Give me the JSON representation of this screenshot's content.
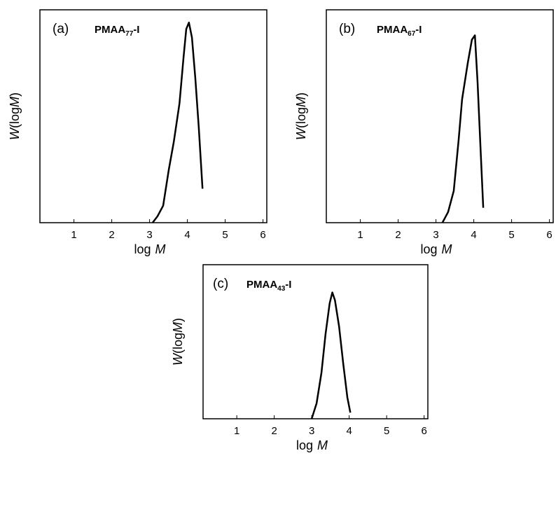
{
  "chart_data": [
    {
      "type": "line",
      "label": "(a)",
      "title": [
        "PMAA",
        "77",
        "-I"
      ],
      "y_label": [
        "W",
        "(log",
        "M",
        ")"
      ],
      "x_label": [
        "log",
        "M"
      ],
      "xlim": [
        0.1,
        6.1
      ],
      "xticks": [
        1,
        2,
        3,
        4,
        5,
        6
      ],
      "ylim": [
        0,
        1
      ],
      "color": "#000000",
      "x": [
        3.08,
        3.21,
        3.36,
        3.51,
        3.64,
        3.79,
        3.9,
        3.97,
        4.04,
        4.12,
        4.21,
        4.3,
        4.4
      ],
      "values": [
        0,
        0.03,
        0.08,
        0.25,
        0.38,
        0.56,
        0.78,
        0.91,
        0.94,
        0.87,
        0.68,
        0.45,
        0.16
      ]
    },
    {
      "type": "line",
      "label": "(b)",
      "title": [
        "PMAA",
        "67",
        "-I"
      ],
      "y_label": [
        "W",
        "(log",
        "M",
        ")"
      ],
      "x_label": [
        "log",
        "M"
      ],
      "xlim": [
        0.1,
        6.1
      ],
      "xticks": [
        1,
        2,
        3,
        4,
        5,
        6
      ],
      "ylim": [
        0,
        1
      ],
      "color": "#000000",
      "x": [
        3.17,
        3.32,
        3.47,
        3.6,
        3.69,
        3.84,
        3.95,
        4.03,
        4.1,
        4.17,
        4.25
      ],
      "values": [
        0,
        0.05,
        0.15,
        0.39,
        0.58,
        0.75,
        0.86,
        0.88,
        0.66,
        0.38,
        0.07
      ]
    },
    {
      "type": "line",
      "label": "(c)",
      "title": [
        "PMAA",
        "43",
        "-I"
      ],
      "y_label": [
        "W",
        "(log",
        "M",
        ")"
      ],
      "x_label": [
        "log",
        "M"
      ],
      "xlim": [
        0.1,
        6.1
      ],
      "xticks": [
        1,
        2,
        3,
        4,
        5,
        6
      ],
      "ylim": [
        0,
        1
      ],
      "color": "#000000",
      "x": [
        3.0,
        3.13,
        3.26,
        3.37,
        3.48,
        3.55,
        3.62,
        3.73,
        3.84,
        3.95,
        4.03
      ],
      "values": [
        0,
        0.1,
        0.3,
        0.55,
        0.75,
        0.82,
        0.77,
        0.6,
        0.36,
        0.14,
        0.04
      ]
    }
  ]
}
